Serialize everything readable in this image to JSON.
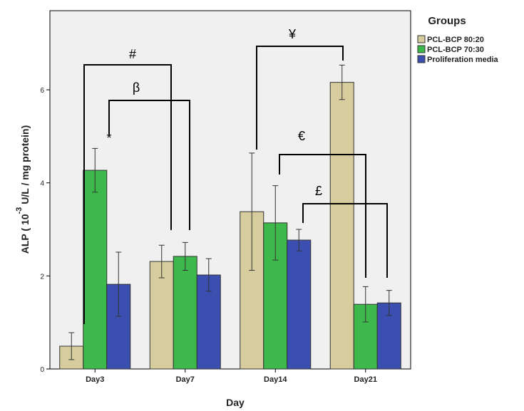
{
  "chart_data": {
    "type": "bar",
    "x_label": "Day",
    "y_label": "ALP ( 10",
    "y_label_exponent": "-3",
    "y_label_unit": "U/L / mg protein)",
    "legend_title": "Groups",
    "legend": "right",
    "categories": [
      "Day3",
      "Day7",
      "Day14",
      "Day21"
    ],
    "series": [
      {
        "name": "PCL-BCP 80:20",
        "color": "#d6cc9d",
        "values": [
          0.49,
          2.31,
          3.38,
          6.16
        ],
        "errors": [
          0.29,
          0.35,
          1.26,
          0.37
        ]
      },
      {
        "name": "PCL-BCP 70:30",
        "color": "#3db84b",
        "values": [
          4.27,
          2.42,
          3.14,
          1.39
        ],
        "errors": [
          0.47,
          0.3,
          0.8,
          0.38
        ]
      },
      {
        "name": "Proliferation media",
        "color": "#3a4fb0",
        "values": [
          1.82,
          2.02,
          2.77,
          1.42
        ],
        "errors": [
          0.69,
          0.35,
          0.23,
          0.27
        ]
      }
    ],
    "ylim": [
      0,
      7.7
    ],
    "yticks": [
      0,
      2,
      4,
      6
    ],
    "annotations": [
      "#",
      "β",
      "*",
      "¥",
      "€",
      "£"
    ]
  }
}
